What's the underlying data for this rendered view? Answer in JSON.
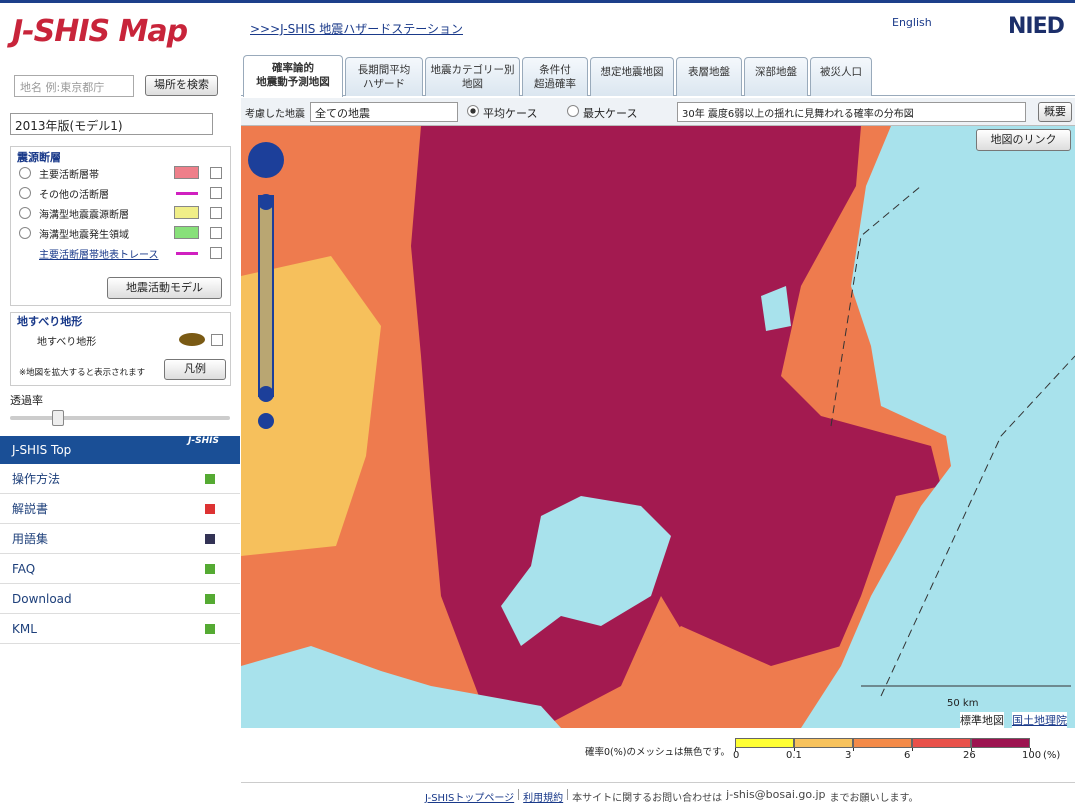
{
  "header": {
    "logo": "J-SHIS Map",
    "station_link": ">>>J-SHIS 地震ハザードステーション",
    "english": "English",
    "nied": "NIED"
  },
  "search": {
    "placeholder": "地名 例:東京都庁",
    "button": "場所を検索"
  },
  "version": "2013年版(モデル1)",
  "faults": {
    "title": "震源断層",
    "items": [
      "主要活断層帯",
      "その他の活断層",
      "海溝型地震震源断層",
      "海溝型地震発生領域",
      "主要活断層帯地表トレース"
    ],
    "button": "地震活動モデル"
  },
  "landslide": {
    "title": "地すべり地形",
    "item": "地すべり地形",
    "note": "※地図を拡大すると表示されます",
    "button": "凡例"
  },
  "opacity_label": "透過率",
  "nav": {
    "title": "J-SHIS Top",
    "logo": "J-SHIS",
    "items": [
      "操作方法",
      "解説書",
      "用語集",
      "FAQ",
      "Download",
      "KML"
    ]
  },
  "tabs": [
    [
      "確率論的",
      "地震動予測地図"
    ],
    [
      "長期間平均",
      "ハザード"
    ],
    [
      "地震カテゴリー別",
      "地図"
    ],
    [
      "条件付",
      "超過確率"
    ],
    [
      "想定地震地図"
    ],
    [
      "表層地盤"
    ],
    [
      "深部地盤"
    ],
    [
      "被災人口"
    ]
  ],
  "toolbar": {
    "label": "考慮した地震",
    "select": "全ての地震",
    "radio_average": "平均ケース",
    "radio_max": "最大ケース",
    "map_select": "30年 震度6弱以上の揺れに見舞われる確率の分布図",
    "button": "概要"
  },
  "map": {
    "link_button": "地図のリンク",
    "scale": "50 km",
    "attribution": "標準地図",
    "attribution_link": "国土地理院"
  },
  "legend": {
    "note": "確率0(%)のメッシュは無色です。",
    "ticks": [
      0,
      0.1,
      3,
      6,
      26,
      100
    ],
    "unit": "(%)",
    "colors": [
      "#ffff33",
      "#f7c25c",
      "#f38a48",
      "#e8514a",
      "#9c1450"
    ]
  },
  "footer": {
    "top_link": "J-SHISトップページ",
    "terms_link": "利用規約",
    "contact": "本サイトに関するお問い合わせは",
    "email": "j-shis@bosai.go.jp",
    "contact_end": "までお願いします。"
  }
}
